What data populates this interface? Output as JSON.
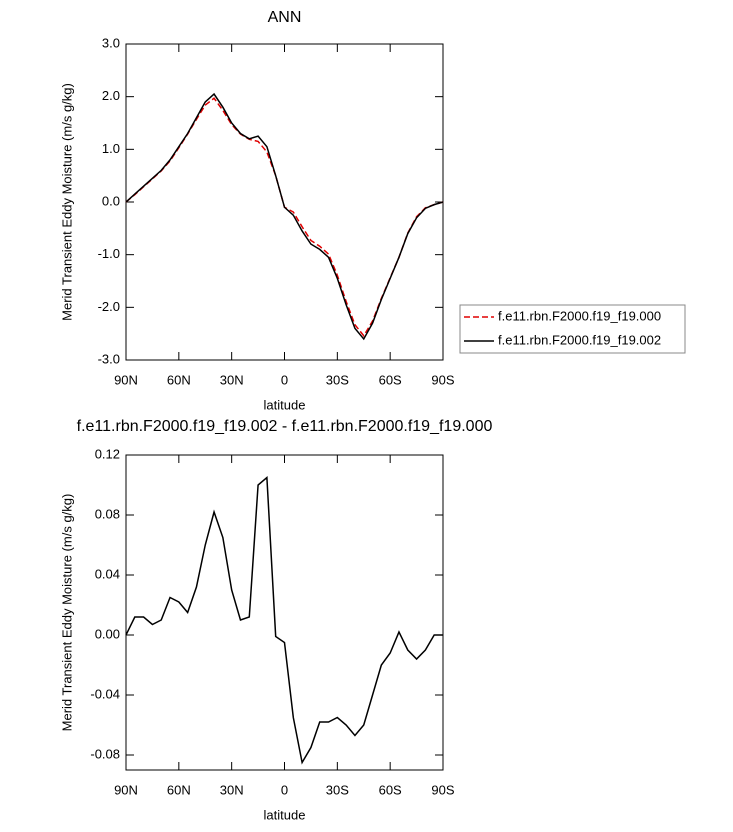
{
  "chart_data": [
    {
      "type": "line",
      "title": "ANN",
      "xlabel": "latitude",
      "ylabel": "Merid Transient Eddy Moisture (m/s g/kg)",
      "x": [
        90,
        85,
        80,
        75,
        70,
        65,
        60,
        55,
        50,
        45,
        40,
        35,
        30,
        25,
        20,
        15,
        10,
        5,
        0,
        -5,
        -10,
        -15,
        -20,
        -25,
        -30,
        -35,
        -40,
        -45,
        -50,
        -55,
        -60,
        -65,
        -70,
        -75,
        -80,
        -85,
        -90
      ],
      "series": [
        {
          "name": "f.e11.rbn.F2000.f19_f19.000",
          "color": "#e00000",
          "dash": true,
          "values": [
            0,
            0.14,
            0.29,
            0.44,
            0.59,
            0.78,
            1.03,
            1.29,
            1.57,
            1.84,
            1.97,
            1.74,
            1.47,
            1.29,
            1.19,
            1.15,
            0.95,
            0.5,
            -0.1,
            -0.19,
            -0.47,
            -0.73,
            -0.84,
            -0.99,
            -1.39,
            -1.89,
            -2.33,
            -2.54,
            -2.26,
            -1.83,
            -1.44,
            -1.05,
            -0.59,
            -0.28,
            -0.11,
            -0.05,
            0
          ]
        },
        {
          "name": "f.e11.rbn.F2000.f19_f19.002",
          "color": "#000000",
          "dash": false,
          "values": [
            0,
            0.15,
            0.3,
            0.45,
            0.6,
            0.8,
            1.05,
            1.3,
            1.6,
            1.9,
            2.05,
            1.8,
            1.5,
            1.3,
            1.2,
            1.25,
            1.05,
            0.5,
            -0.1,
            -0.25,
            -0.55,
            -0.8,
            -0.9,
            -1.05,
            -1.45,
            -1.95,
            -2.4,
            -2.6,
            -2.3,
            -1.85,
            -1.45,
            -1.05,
            -0.6,
            -0.3,
            -0.12,
            -0.05,
            0
          ]
        }
      ],
      "xlim": [
        90,
        -90
      ],
      "xticks": [
        {
          "value": 90,
          "label": "90N"
        },
        {
          "value": 60,
          "label": "60N"
        },
        {
          "value": 30,
          "label": "30N"
        },
        0,
        {
          "value": -30,
          "label": "30S"
        },
        {
          "value": -60,
          "label": "60S"
        },
        {
          "value": -90,
          "label": "90S"
        }
      ],
      "ylim": [
        -3,
        3
      ],
      "yticks": [
        {
          "value": -3,
          "label": "-3.0"
        },
        {
          "value": -2,
          "label": "-2.0"
        },
        {
          "value": -1,
          "label": "-1.0"
        },
        {
          "value": 0,
          "label": "0.0"
        },
        {
          "value": 1,
          "label": "1.0"
        },
        {
          "value": 2,
          "label": "2.0"
        },
        {
          "value": 3,
          "label": "3.0"
        }
      ],
      "legend": "right"
    },
    {
      "type": "line",
      "title": "f.e11.rbn.F2000.f19_f19.002 - f.e11.rbn.F2000.f19_f19.000",
      "xlabel": "latitude",
      "ylabel": "Merid Transient Eddy Moisture (m/s g/kg)",
      "x": [
        90,
        85,
        80,
        75,
        70,
        65,
        60,
        55,
        50,
        45,
        40,
        35,
        30,
        25,
        20,
        15,
        10,
        5,
        0,
        -5,
        -10,
        -15,
        -20,
        -25,
        -30,
        -35,
        -40,
        -45,
        -50,
        -55,
        -60,
        -65,
        -70,
        -75,
        -80,
        -85,
        -90
      ],
      "series": [
        {
          "color": "#000000",
          "dash": false,
          "values": [
            0,
            0.012,
            0.012,
            0.007,
            0.01,
            0.025,
            0.022,
            0.015,
            0.032,
            0.06,
            0.082,
            0.065,
            0.03,
            0.01,
            0.012,
            0.1,
            0.105,
            -0.001,
            -0.005,
            -0.055,
            -0.085,
            -0.075,
            -0.058,
            -0.058,
            -0.055,
            -0.06,
            -0.067,
            -0.06,
            -0.04,
            -0.02,
            -0.012,
            0.002,
            -0.01,
            -0.016,
            -0.01,
            0,
            0
          ]
        }
      ],
      "xlim": [
        90,
        -90
      ],
      "xticks": [
        {
          "value": 90,
          "label": "90N"
        },
        {
          "value": 60,
          "label": "60N"
        },
        {
          "value": 30,
          "label": "30N"
        },
        0,
        {
          "value": -30,
          "label": "30S"
        },
        {
          "value": -60,
          "label": "60S"
        },
        {
          "value": -90,
          "label": "90S"
        }
      ],
      "ylim": [
        -0.09,
        0.12
      ],
      "yticks": [
        -0.08,
        -0.04,
        {
          "value": 0,
          "label": "0.00"
        },
        0.04,
        0.08,
        0.12
      ]
    }
  ]
}
